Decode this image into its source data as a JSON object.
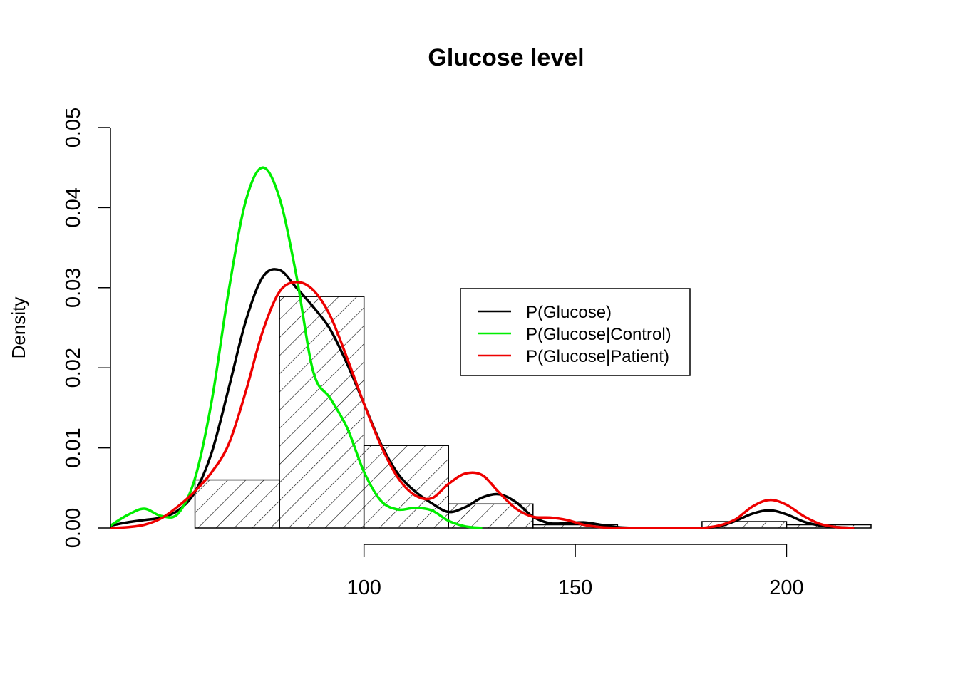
{
  "chart_data": {
    "type": "histogram",
    "title": "Glucose level",
    "xlabel": "",
    "ylabel": "Density",
    "xlim": [
      40,
      220
    ],
    "ylim": [
      0,
      0.05
    ],
    "x_ticks": [
      100,
      150,
      200
    ],
    "x_tick_labels": [
      "100",
      "150",
      "200"
    ],
    "y_ticks": [
      0.0,
      0.01,
      0.02,
      0.03,
      0.04,
      0.05
    ],
    "y_tick_labels": [
      "0.00",
      "0.01",
      "0.02",
      "0.03",
      "0.04",
      "0.05"
    ],
    "bar_fill": "diagonal hatch",
    "histogram": {
      "bins": [
        {
          "x0": 60,
          "x1": 80,
          "density": 0.006
        },
        {
          "x0": 80,
          "x1": 100,
          "density": 0.0289
        },
        {
          "x0": 100,
          "x1": 120,
          "density": 0.0103
        },
        {
          "x0": 120,
          "x1": 140,
          "density": 0.003
        },
        {
          "x0": 140,
          "x1": 160,
          "density": 0.0004
        },
        {
          "x0": 160,
          "x1": 180,
          "density": 0.0
        },
        {
          "x0": 180,
          "x1": 200,
          "density": 0.0008
        },
        {
          "x0": 200,
          "x1": 220,
          "density": 0.0004
        }
      ]
    },
    "series": [
      {
        "name": "P(Glucose)",
        "color": "#000000",
        "x": [
          40,
          44,
          48,
          52,
          56,
          60,
          64,
          68,
          72,
          76,
          80,
          84,
          88,
          92,
          96,
          100,
          104,
          108,
          112,
          116,
          120,
          124,
          128,
          132,
          136,
          140,
          144,
          148,
          152,
          156,
          160,
          164,
          168,
          172,
          176,
          180,
          184,
          188,
          192,
          196,
          200,
          204,
          208,
          212,
          216
        ],
        "y": [
          0.0003,
          0.0007,
          0.001,
          0.0013,
          0.0022,
          0.0045,
          0.0095,
          0.0175,
          0.0258,
          0.0313,
          0.0322,
          0.03,
          0.0276,
          0.0248,
          0.0205,
          0.0155,
          0.0105,
          0.0068,
          0.0046,
          0.0031,
          0.002,
          0.0026,
          0.0038,
          0.0042,
          0.0032,
          0.0014,
          0.0006,
          0.0006,
          0.0007,
          0.0004,
          0.0001,
          0.0,
          0.0,
          0.0,
          0.0,
          0.0,
          0.0002,
          0.0009,
          0.0018,
          0.0022,
          0.0017,
          0.0008,
          0.0003,
          0.0001,
          0.0
        ]
      },
      {
        "name": "P(Glucose|Control)",
        "color": "#00ee00",
        "x": [
          40,
          44,
          48,
          52,
          56,
          60,
          64,
          68,
          72,
          76,
          80,
          84,
          88,
          92,
          96,
          100,
          104,
          108,
          112,
          116,
          120,
          124,
          128
        ],
        "y": [
          0.0003,
          0.0016,
          0.0024,
          0.0015,
          0.0018,
          0.0062,
          0.016,
          0.0297,
          0.0408,
          0.045,
          0.0412,
          0.0315,
          0.0195,
          0.0162,
          0.0125,
          0.007,
          0.0034,
          0.0023,
          0.0025,
          0.0022,
          0.0009,
          0.0002,
          0.0
        ]
      },
      {
        "name": "P(Glucose|Patient)",
        "color": "#ee0000",
        "x": [
          40,
          44,
          48,
          52,
          56,
          60,
          64,
          68,
          72,
          76,
          80,
          84,
          88,
          92,
          96,
          100,
          104,
          108,
          112,
          116,
          120,
          124,
          128,
          132,
          136,
          140,
          144,
          148,
          152,
          156,
          160,
          164,
          168,
          172,
          176,
          180,
          184,
          188,
          192,
          196,
          200,
          204,
          208,
          212,
          216
        ],
        "y": [
          0.0,
          0.0001,
          0.0004,
          0.0012,
          0.0027,
          0.0046,
          0.007,
          0.0105,
          0.017,
          0.0245,
          0.0295,
          0.0307,
          0.0297,
          0.0265,
          0.0212,
          0.0155,
          0.0103,
          0.0063,
          0.0041,
          0.0037,
          0.0055,
          0.0068,
          0.0066,
          0.0044,
          0.0024,
          0.0014,
          0.0013,
          0.001,
          0.0004,
          0.0001,
          0.0,
          0.0,
          0.0,
          0.0,
          0.0,
          0.0,
          0.0003,
          0.0011,
          0.0027,
          0.0035,
          0.0029,
          0.0015,
          0.0005,
          0.0001,
          0.0
        ]
      }
    ],
    "legend": {
      "position": "center-right",
      "entries": [
        {
          "label": "P(Glucose)",
          "color": "#000000"
        },
        {
          "label": "P(Glucose|Control)",
          "color": "#00ee00"
        },
        {
          "label": "P(Glucose|Patient)",
          "color": "#ee0000"
        }
      ]
    }
  }
}
